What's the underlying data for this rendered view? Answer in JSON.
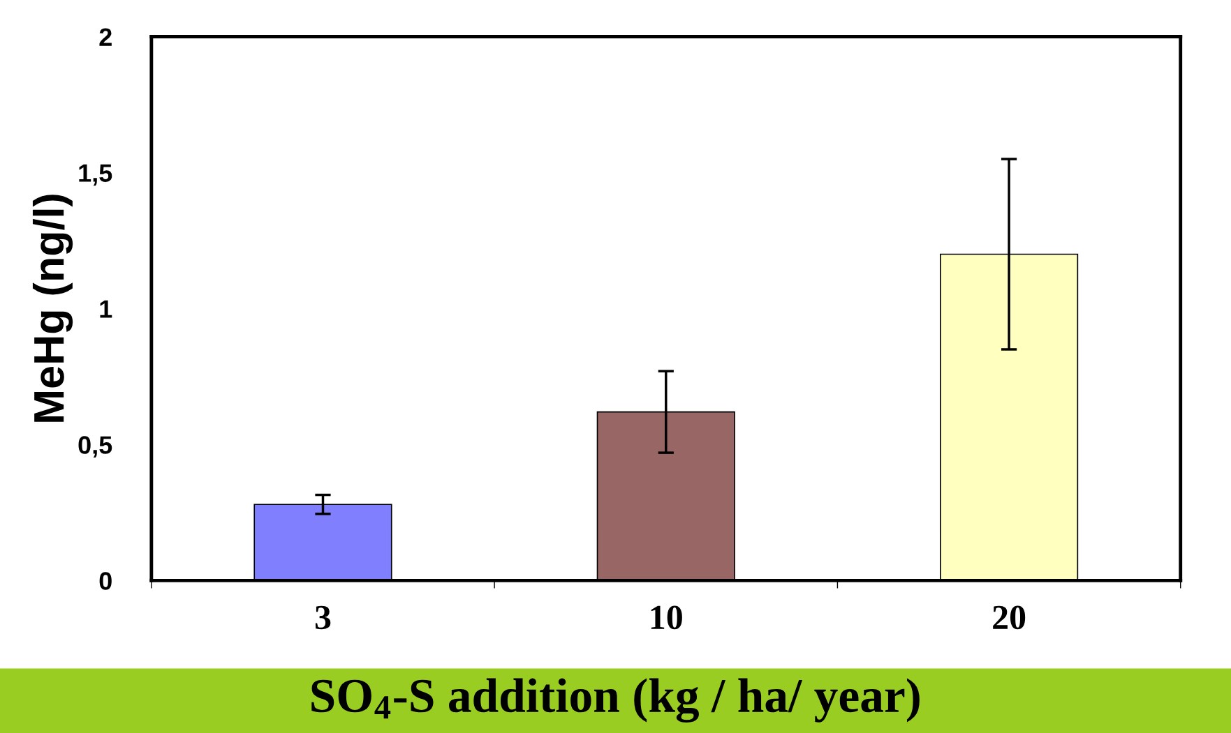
{
  "chart_data": {
    "type": "bar",
    "xlabel": "SO$_{4}$-S addition (kg / ha/ year)",
    "ylabel": "MeHg (ng/l)",
    "categories": [
      "3",
      "10",
      "20"
    ],
    "values": [
      0.28,
      0.62,
      1.2
    ],
    "colors": [
      "#8080ff",
      "#996666",
      "#ffffc0"
    ],
    "errors": [
      0.035,
      0.15,
      0.35
    ],
    "ylim": [
      0,
      2
    ],
    "yticks": [
      0,
      {
        "value": 0.5,
        "label": "0,5"
      },
      1,
      {
        "value": 1.5,
        "label": "1,5"
      },
      2
    ],
    "grid": false,
    "legend": false
  }
}
